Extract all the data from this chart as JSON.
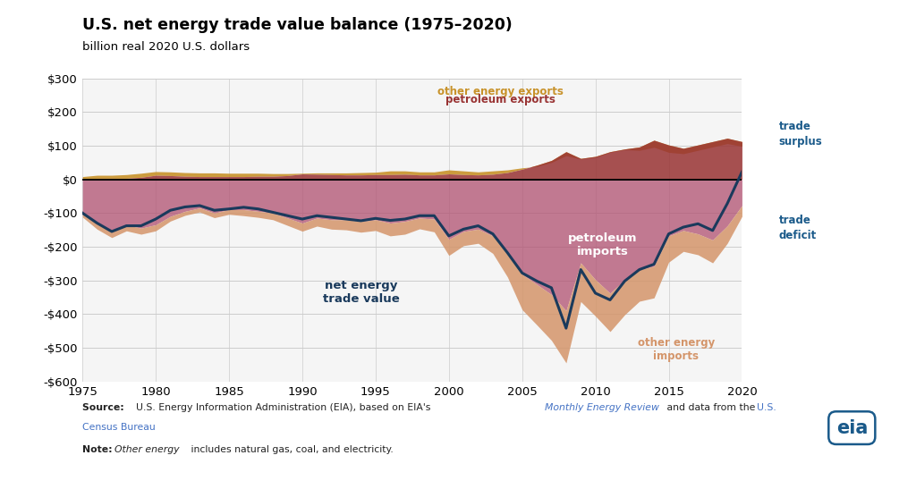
{
  "title": "U.S. net energy trade value balance (1975–2020)",
  "subtitle": "billion real 2020 U.S. dollars",
  "years": [
    1975,
    1976,
    1977,
    1978,
    1979,
    1980,
    1981,
    1982,
    1983,
    1984,
    1985,
    1986,
    1987,
    1988,
    1989,
    1990,
    1991,
    1992,
    1993,
    1994,
    1995,
    1996,
    1997,
    1998,
    1999,
    2000,
    2001,
    2002,
    2003,
    2004,
    2005,
    2006,
    2007,
    2008,
    2009,
    2010,
    2011,
    2012,
    2013,
    2014,
    2015,
    2016,
    2017,
    2018,
    2019,
    2020
  ],
  "petroleum_exports": [
    2,
    3,
    3,
    3,
    6,
    12,
    11,
    9,
    8,
    8,
    8,
    8,
    9,
    9,
    11,
    16,
    15,
    14,
    13,
    13,
    14,
    14,
    15,
    13,
    13,
    16,
    14,
    13,
    15,
    20,
    30,
    42,
    56,
    82,
    62,
    68,
    82,
    90,
    96,
    116,
    102,
    92,
    102,
    112,
    122,
    112
  ],
  "other_energy_exports": [
    8,
    12,
    12,
    14,
    18,
    23,
    22,
    20,
    19,
    19,
    18,
    18,
    18,
    17,
    17,
    18,
    19,
    19,
    19,
    20,
    21,
    25,
    25,
    22,
    22,
    28,
    25,
    22,
    25,
    28,
    34,
    38,
    50,
    70,
    60,
    65,
    80,
    88,
    86,
    95,
    80,
    76,
    86,
    96,
    106,
    98
  ],
  "petroleum_imports": [
    -100,
    -130,
    -155,
    -135,
    -145,
    -135,
    -110,
    -95,
    -85,
    -100,
    -90,
    -90,
    -95,
    -100,
    -115,
    -130,
    -115,
    -120,
    -120,
    -125,
    -120,
    -130,
    -125,
    -115,
    -118,
    -178,
    -155,
    -148,
    -168,
    -222,
    -282,
    -312,
    -342,
    -390,
    -248,
    -298,
    -338,
    -298,
    -268,
    -258,
    -168,
    -152,
    -162,
    -180,
    -138,
    -78
  ],
  "other_energy_imports": [
    -12,
    -18,
    -18,
    -18,
    -18,
    -18,
    -14,
    -12,
    -12,
    -14,
    -14,
    -18,
    -18,
    -20,
    -22,
    -24,
    -24,
    -28,
    -30,
    -32,
    -32,
    -38,
    -38,
    -32,
    -38,
    -48,
    -42,
    -42,
    -52,
    -68,
    -105,
    -120,
    -136,
    -155,
    -115,
    -108,
    -114,
    -104,
    -94,
    -94,
    -78,
    -62,
    -62,
    -68,
    -52,
    -32
  ],
  "net_energy_trade": [
    -100,
    -130,
    -155,
    -138,
    -138,
    -118,
    -92,
    -82,
    -78,
    -92,
    -88,
    -83,
    -88,
    -98,
    -108,
    -118,
    -108,
    -113,
    -118,
    -123,
    -116,
    -122,
    -118,
    -108,
    -108,
    -168,
    -148,
    -138,
    -162,
    -218,
    -278,
    -302,
    -322,
    -442,
    -268,
    -338,
    -358,
    -302,
    -268,
    -252,
    -162,
    -142,
    -132,
    -152,
    -72,
    22
  ],
  "ylim": [
    -600,
    300
  ],
  "yticks": [
    -600,
    -500,
    -400,
    -300,
    -200,
    -100,
    0,
    100,
    200,
    300
  ],
  "ytick_labels": [
    "-$600",
    "-$500",
    "-$400",
    "-$300",
    "-$200",
    "-$100",
    "$0",
    "$100",
    "$200",
    "$300"
  ],
  "xticks": [
    1975,
    1980,
    1985,
    1990,
    1995,
    2000,
    2005,
    2010,
    2015,
    2020
  ],
  "color_petroleum_exports": "#993333",
  "color_other_exports": "#c8922a",
  "color_petroleum_imports": "#b05070",
  "color_other_imports": "#d4956a",
  "color_net_line": "#1a3a5c",
  "bg_color": "#ffffff",
  "plot_bg": "#f5f5f5",
  "grid_color": "#cccccc",
  "arrow_color": "#1a5a8a"
}
